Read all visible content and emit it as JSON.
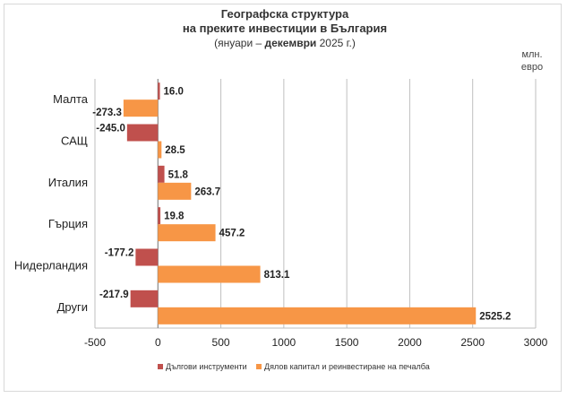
{
  "chart_data": {
    "type": "bar",
    "orientation": "horizontal",
    "title": {
      "line1": "Географска структура",
      "line2": "на преките инвестиции в България",
      "line3_prefix": "(януари – ",
      "line3_bold": "декември",
      "line3_suffix": " 2025 г.)"
    },
    "unit_line1": "млн.",
    "unit_line2": "евро",
    "categories": [
      "Малта",
      "САЩ",
      "Италия",
      "Гърция",
      "Нидерландия",
      "Други"
    ],
    "series": [
      {
        "name": "Дългови инструменти",
        "color": "#c0504d",
        "values": [
          16.0,
          -245.0,
          51.8,
          19.8,
          -177.2,
          -217.9
        ]
      },
      {
        "name": "Дялов капитал и реинвестиране на печалба",
        "color": "#f79646",
        "values": [
          -273.3,
          28.5,
          263.7,
          457.2,
          813.1,
          2525.2
        ]
      }
    ],
    "xlim": [
      -500,
      3000
    ],
    "xticks": [
      "-500",
      "0",
      "500",
      "1000",
      "1500",
      "2000",
      "2500",
      "3000"
    ],
    "grid": true,
    "legend_position": "bottom"
  }
}
